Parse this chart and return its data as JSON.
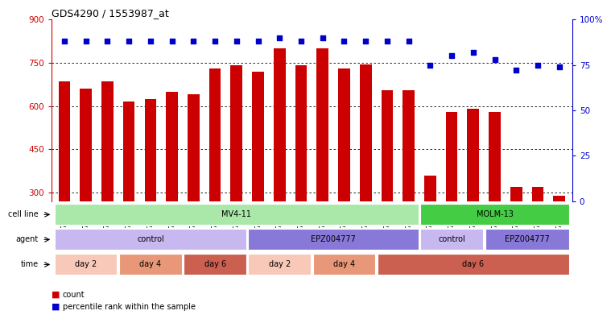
{
  "title": "GDS4290 / 1553987_at",
  "samples": [
    "GSM739151",
    "GSM739152",
    "GSM739153",
    "GSM739157",
    "GSM739158",
    "GSM739159",
    "GSM739163",
    "GSM739164",
    "GSM739165",
    "GSM739148",
    "GSM739149",
    "GSM739150",
    "GSM739154",
    "GSM739155",
    "GSM739156",
    "GSM739160",
    "GSM739161",
    "GSM739162",
    "GSM739169",
    "GSM739170",
    "GSM739171",
    "GSM739166",
    "GSM739167",
    "GSM739168"
  ],
  "counts": [
    685,
    660,
    685,
    615,
    625,
    650,
    640,
    730,
    740,
    720,
    800,
    740,
    800,
    730,
    745,
    655,
    655,
    360,
    580,
    590,
    580,
    320,
    320,
    290
  ],
  "percentile_ranks": [
    88,
    88,
    88,
    88,
    88,
    88,
    88,
    88,
    88,
    88,
    90,
    88,
    90,
    88,
    88,
    88,
    88,
    75,
    80,
    82,
    78,
    72,
    75,
    74
  ],
  "bar_color": "#cc0000",
  "dot_color": "#0000cc",
  "ylim_left": [
    270,
    900
  ],
  "ylim_right": [
    0,
    100
  ],
  "yticks_left": [
    300,
    450,
    600,
    750,
    900
  ],
  "yticks_right": [
    0,
    25,
    50,
    75,
    100
  ],
  "ytick_labels_right": [
    "0",
    "25",
    "50",
    "75",
    "100%"
  ],
  "grid_values": [
    300,
    450,
    600,
    750
  ],
  "bar_width": 0.55,
  "left_axis_color": "#cc0000",
  "right_axis_color": "#0000cc",
  "cell_line_segments": [
    {
      "start": 0,
      "end": 17,
      "label": "MV4-11",
      "color": "#aae8aa"
    },
    {
      "start": 17,
      "end": 24,
      "label": "MOLM-13",
      "color": "#44cc44"
    }
  ],
  "agent_segments": [
    {
      "start": 0,
      "end": 9,
      "label": "control",
      "color": "#c8b8f0"
    },
    {
      "start": 9,
      "end": 17,
      "label": "EPZ004777",
      "color": "#8878d8"
    },
    {
      "start": 17,
      "end": 20,
      "label": "control",
      "color": "#c8b8f0"
    },
    {
      "start": 20,
      "end": 24,
      "label": "EPZ004777",
      "color": "#8878d8"
    }
  ],
  "time_segments": [
    {
      "start": 0,
      "end": 3,
      "label": "day 2",
      "color": "#f8c8b8"
    },
    {
      "start": 3,
      "end": 6,
      "label": "day 4",
      "color": "#e89878"
    },
    {
      "start": 6,
      "end": 9,
      "label": "day 6",
      "color": "#cc6050"
    },
    {
      "start": 9,
      "end": 12,
      "label": "day 2",
      "color": "#f8c8b8"
    },
    {
      "start": 12,
      "end": 15,
      "label": "day 4",
      "color": "#e89878"
    },
    {
      "start": 15,
      "end": 24,
      "label": "day 6",
      "color": "#cc6050"
    }
  ],
  "legend_count_color": "#cc0000",
  "legend_dot_color": "#0000cc"
}
